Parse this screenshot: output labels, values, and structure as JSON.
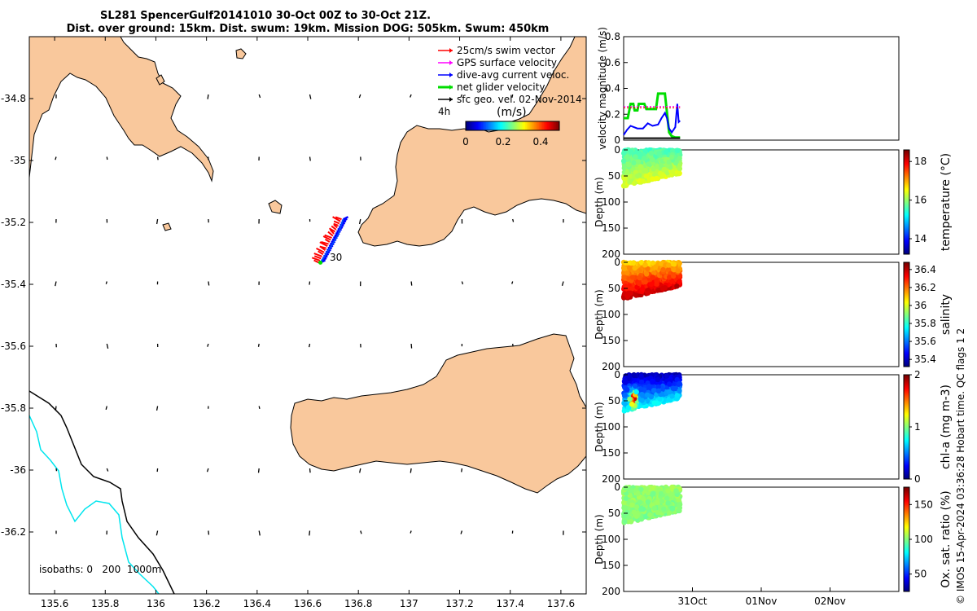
{
  "title": {
    "line1": "SL281 SpencerGulf20141010 30-Oct 00Z to 30-Oct 21Z.",
    "line2": "Dist. over ground: 15km. Dist. swum: 19km. Mission DOG: 505km. Swum: 450km"
  },
  "colors": {
    "land": "#f9c89c",
    "sea": "#ffffff",
    "swim": "#ff0000",
    "gps": "#ff00ff",
    "current": "#0000ff",
    "net": "#00dd00",
    "geo": "#000000",
    "isobath0": "#000000",
    "isobath200": "#000000",
    "isobath1000": "#00e5ee"
  },
  "chart_data": [
    {
      "type": "map",
      "xlim": [
        135.5,
        137.7
      ],
      "ylim": [
        -36.4,
        -34.6
      ],
      "x_ticks": [
        "135.6",
        "135.8",
        "136",
        "136.2",
        "136.4",
        "136.6",
        "136.8",
        "137",
        "137.2",
        "137.4",
        "137.6"
      ],
      "x_tick_values": [
        135.6,
        135.8,
        136.0,
        136.2,
        136.4,
        136.6,
        136.8,
        137.0,
        137.2,
        137.4,
        137.6
      ],
      "y_ticks": [
        "-34.8",
        "-35",
        "-35.2",
        "-35.4",
        "-35.6",
        "-35.8",
        "-36",
        "-36.2"
      ],
      "y_tick_values": [
        -34.8,
        -35.0,
        -35.2,
        -35.4,
        -35.6,
        -35.8,
        -36.0,
        -36.2
      ],
      "legend": [
        {
          "label": "25cm/s swim vector",
          "color": "#ff0000"
        },
        {
          "label": "GPS surface velocity",
          "color": "#ff00ff"
        },
        {
          "label": "dive-avg current veloc.",
          "color": "#0000ff"
        },
        {
          "label": "net glider velocity",
          "color": "#00dd00"
        },
        {
          "label": "sfc geo. vel. 02-Nov-2014",
          "color": "#000000"
        }
      ],
      "legend_position": "top-right",
      "colorbar": {
        "title": "(m/s)",
        "ticks": [
          "0",
          "0.2",
          "0.4"
        ],
        "range": [
          0,
          0.5
        ],
        "side_label": "4h"
      },
      "track_label": "30",
      "isobaths": "isobaths: 0   200  1000m",
      "track": [
        [
          136.65,
          -35.33
        ],
        [
          136.69,
          -35.28
        ],
        [
          136.72,
          -35.24
        ],
        [
          136.74,
          -35.19
        ]
      ]
    },
    {
      "type": "line",
      "ylabel": "velocity magnitude (m/s)",
      "ylim": [
        0,
        0.8
      ],
      "y_ticks": [
        "0",
        "0.2",
        "0.4",
        "0.6",
        "0.8"
      ],
      "y_tick_values": [
        0,
        0.2,
        0.4,
        0.6,
        0.8
      ],
      "xlim": [
        0,
        4
      ],
      "series": [
        {
          "color": "#00dd00",
          "x": [
            0.0,
            0.06,
            0.1,
            0.14,
            0.16,
            0.2,
            0.22,
            0.3,
            0.33,
            0.47,
            0.5,
            0.6,
            0.62,
            0.66,
            0.7,
            0.75,
            0.82
          ],
          "values": [
            0.17,
            0.17,
            0.28,
            0.28,
            0.23,
            0.23,
            0.28,
            0.28,
            0.24,
            0.24,
            0.36,
            0.36,
            0.26,
            0.06,
            0.03,
            0.02,
            0.02
          ]
        },
        {
          "color": "#0000ff",
          "x": [
            0.0,
            0.05,
            0.1,
            0.15,
            0.2,
            0.28,
            0.35,
            0.42,
            0.5,
            0.55,
            0.6,
            0.63,
            0.66,
            0.7,
            0.75,
            0.78,
            0.8,
            0.82
          ],
          "values": [
            0.04,
            0.08,
            0.11,
            0.1,
            0.09,
            0.09,
            0.13,
            0.11,
            0.12,
            0.17,
            0.21,
            0.17,
            0.09,
            0.06,
            0.1,
            0.28,
            0.14,
            0.15
          ]
        },
        {
          "color": "#ff0000",
          "x": [
            0.0,
            0.82
          ],
          "values": [
            0.25,
            0.25
          ]
        },
        {
          "color": "#ff00ff",
          "x": [
            0.0,
            0.82
          ],
          "values": [
            0.26,
            0.26
          ]
        },
        {
          "color": "#000000",
          "x": [
            0.0,
            0.82
          ],
          "values": [
            0.015,
            0.015
          ]
        }
      ]
    },
    {
      "type": "heatmap",
      "ylabel": "Depth (m)",
      "colorbar_label": "temperature (°C)",
      "ylim": [
        200,
        0
      ],
      "y_ticks": [
        "0",
        "50",
        "100",
        "150",
        "200"
      ],
      "y_tick_values": [
        0,
        50,
        100,
        150,
        200
      ],
      "colorbar_ticks": [
        "14",
        "16",
        "18"
      ],
      "colorbar_tick_values": [
        14,
        16,
        18
      ],
      "clim": [
        13.2,
        18.6
      ],
      "surface": 15.6,
      "bottom": 16.4,
      "max_depth_start": 70,
      "max_depth_end": 45
    },
    {
      "type": "heatmap",
      "ylabel": "Depth (m)",
      "colorbar_label": "salinity",
      "ylim": [
        200,
        0
      ],
      "y_ticks": [
        "0",
        "50",
        "100",
        "150",
        "200"
      ],
      "y_tick_values": [
        0,
        50,
        100,
        150,
        200
      ],
      "colorbar_ticks": [
        "35.4",
        "35.6",
        "35.8",
        "36",
        "36.2",
        "36.4"
      ],
      "colorbar_tick_values": [
        35.4,
        35.6,
        35.8,
        36.0,
        36.2,
        36.4
      ],
      "clim": [
        35.32,
        36.48
      ],
      "surface": 36.1,
      "bottom": 36.4,
      "max_depth_start": 70,
      "max_depth_end": 45
    },
    {
      "type": "heatmap",
      "ylabel": "Depth (m)",
      "colorbar_label": "chl-a (mg m-3)",
      "ylim": [
        200,
        0
      ],
      "y_ticks": [
        "0",
        "50",
        "100",
        "150",
        "200"
      ],
      "y_tick_values": [
        0,
        50,
        100,
        150,
        200
      ],
      "colorbar_ticks": [
        "0",
        "1",
        "2"
      ],
      "colorbar_tick_values": [
        0,
        1,
        2
      ],
      "clim": [
        0,
        2
      ],
      "surface": 0.1,
      "bottom": 0.75,
      "hotspot": {
        "x": 0.14,
        "depth": 45,
        "value": 1.95
      },
      "max_depth_start": 70,
      "max_depth_end": 45
    },
    {
      "type": "heatmap",
      "ylabel": "Depth (m)",
      "colorbar_label": "Ox. sat. ratio (%)",
      "ylim": [
        200,
        0
      ],
      "y_ticks": [
        "0",
        "50",
        "100",
        "150",
        "200"
      ],
      "y_tick_values": [
        0,
        50,
        100,
        150,
        200
      ],
      "colorbar_ticks": [
        "50",
        "100",
        "150"
      ],
      "colorbar_tick_values": [
        50,
        100,
        150
      ],
      "clim": [
        25,
        175
      ],
      "surface": 103,
      "bottom": 100,
      "max_depth_start": 70,
      "max_depth_end": 45,
      "x_ticks": [
        "31Oct",
        "01Nov",
        "02Nov"
      ],
      "x_tick_values": [
        1,
        2,
        3
      ]
    }
  ],
  "footer": "© IMOS 15-Apr-2024 03:36:28 Hobart time. QC flags 1  2"
}
